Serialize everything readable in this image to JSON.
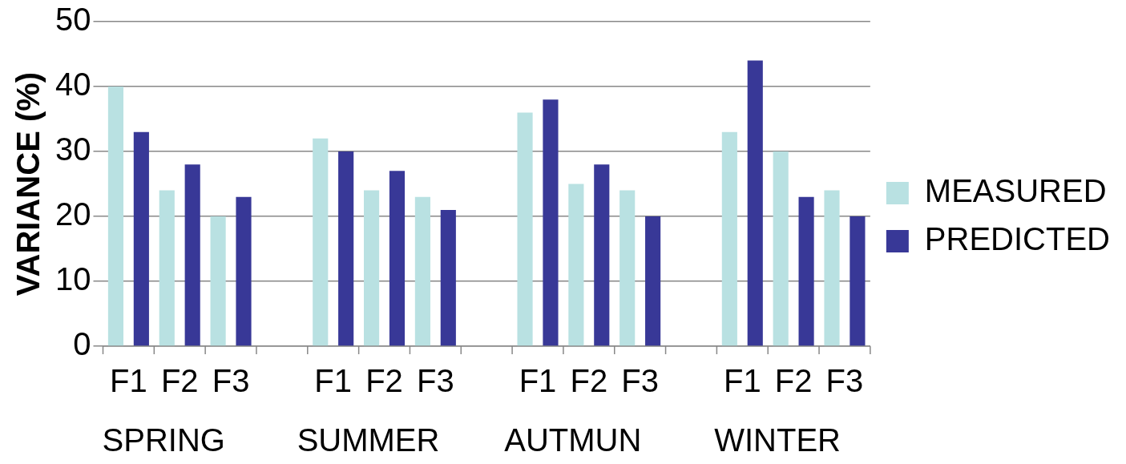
{
  "chart_data": {
    "type": "bar",
    "ylabel": "VARIANCE (%)",
    "categories": [
      "F1",
      "F2",
      "F3",
      null,
      "F1",
      "F2",
      "F3",
      null,
      "F1",
      "F2",
      "F3",
      null,
      "F1",
      "F2",
      "F3"
    ],
    "series": [
      {
        "name": "MEASURED",
        "color": "#b9e1e2",
        "values": [
          40,
          24,
          20,
          null,
          32,
          24,
          23,
          null,
          36,
          25,
          24,
          null,
          33,
          30,
          24
        ]
      },
      {
        "name": "PREDICTED",
        "color": "#383897",
        "values": [
          33,
          28,
          23,
          null,
          30,
          27,
          21,
          null,
          38,
          28,
          20,
          null,
          44,
          23,
          20
        ]
      }
    ],
    "annotations": [
      "SPRING",
      "SUMMER",
      "AUTMUN",
      "WINTER"
    ],
    "ylim": [
      0,
      50
    ],
    "yticks": [
      0,
      10,
      20,
      30,
      40,
      50
    ],
    "grid": "y",
    "legend": "right"
  }
}
